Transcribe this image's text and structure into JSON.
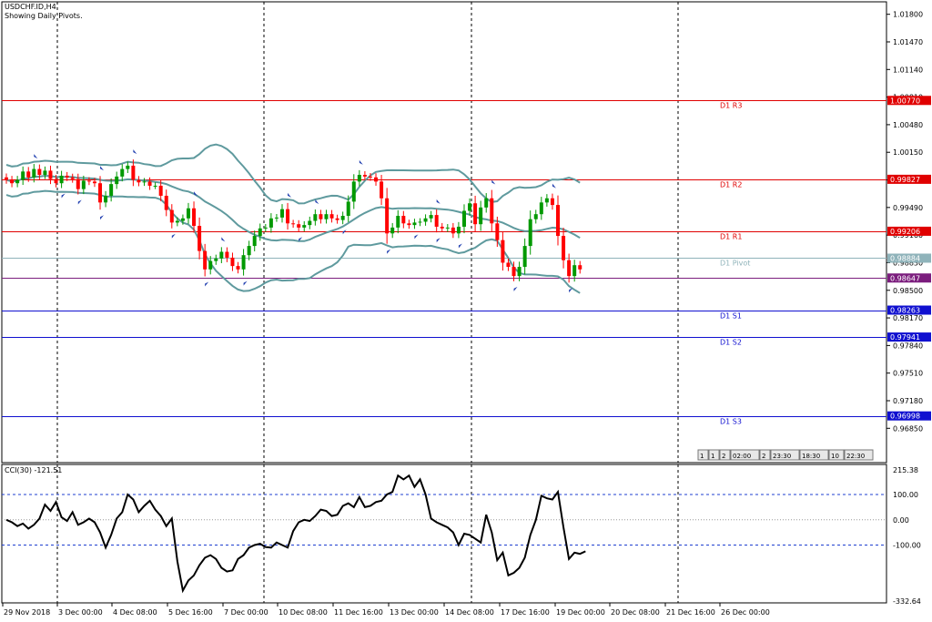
{
  "chart_header": {
    "symbol": "USDCHF.ID,H4",
    "note": "Showing Daily Pivots."
  },
  "cci_label": "CCI(30) -121.51",
  "price_ticks": [
    "1.01800",
    "1.01470",
    "1.01140",
    "1.00810",
    "1.00480",
    "1.00150",
    "0.99820",
    "0.99490",
    "0.99160",
    "0.98830",
    "0.98500",
    "0.98170",
    "0.97840",
    "0.97510",
    "0.97180",
    "0.96850"
  ],
  "cci_ticks": [
    "215.38",
    "100.00",
    "0.00",
    "-100.00",
    "-332.64"
  ],
  "time_labels": [
    "29 Nov 2018",
    "3 Dec 00:00",
    "4 Dec 08:00",
    "5 Dec 16:00",
    "7 Dec 00:00",
    "10 Dec 08:00",
    "11 Dec 16:00",
    "13 Dec 00:00",
    "14 Dec 08:00",
    "17 Dec 16:00",
    "19 Dec 00:00",
    "20 Dec 08:00",
    "21 Dec 16:00",
    "26 Dec 00:00"
  ],
  "time_toolbar": [
    "1",
    "1",
    "2",
    "02:00",
    "2",
    "23:30",
    "18:30",
    "10",
    "22:30"
  ],
  "pivot_lines": [
    {
      "label": "D1 R3",
      "value": "1.00770",
      "color": "#e00000",
      "level": 1.0077
    },
    {
      "label": "D1 R2",
      "value": "0.99827",
      "color": "#e00000",
      "level": 0.99827
    },
    {
      "label": "D1 R1",
      "value": "0.99206",
      "color": "#e00000",
      "level": 0.99206
    },
    {
      "label": "D1 Pivot",
      "value": "0.98884",
      "color": "#8fb3ba",
      "level": 0.98884
    },
    {
      "label": "",
      "value": "0.98647",
      "color": "#7b1d7d",
      "level": 0.98647
    },
    {
      "label": "D1 S1",
      "value": "0.98263",
      "color": "#1010d0",
      "level": 0.98263
    },
    {
      "label": "D1 S2",
      "value": "0.97941",
      "color": "#1010d0",
      "level": 0.97941
    },
    {
      "label": "D1 S3",
      "value": "0.96998",
      "color": "#1010d0",
      "level": 0.96998
    }
  ],
  "colors": {
    "bull": "#009900",
    "bear": "#ff0000",
    "bands": "#5f9a9e",
    "cci": "#000000",
    "levels": "#1f3fd0",
    "fractal": "#2240b0"
  },
  "chart_data": [
    {
      "type": "candlestick",
      "title": "USDCHF.ID,H4",
      "ylim": [
        0.9655,
        1.0196
      ],
      "y_ticks": [
        1.018,
        1.0147,
        1.0114,
        1.0081,
        1.0048,
        1.0015,
        0.9982,
        0.9949,
        0.9916,
        0.9883,
        0.985,
        0.9817,
        0.9784,
        0.9751,
        0.9718,
        0.9685
      ],
      "x_labels": [
        "29 Nov 2018",
        "3 Dec 00:00",
        "4 Dec 08:00",
        "5 Dec 16:00",
        "7 Dec 00:00",
        "10 Dec 08:00",
        "11 Dec 16:00",
        "13 Dec 00:00",
        "14 Dec 08:00",
        "17 Dec 16:00",
        "19 Dec 00:00",
        "20 Dec 08:00",
        "21 Dec 16:00",
        "26 Dec 00:00"
      ],
      "close": [
        0.9982,
        0.9978,
        0.9982,
        0.9992,
        0.9985,
        0.9995,
        0.9988,
        0.9993,
        0.9983,
        0.9978,
        0.9987,
        0.9985,
        0.9983,
        0.9971,
        0.9981,
        0.998,
        0.9978,
        0.9955,
        0.9963,
        0.9977,
        0.9986,
        0.9995,
        0.9999,
        0.9982,
        0.9979,
        0.998,
        0.9975,
        0.9975,
        0.9963,
        0.9946,
        0.9931,
        0.9933,
        0.9936,
        0.9948,
        0.9927,
        0.9897,
        0.9875,
        0.9885,
        0.9888,
        0.9896,
        0.9889,
        0.9879,
        0.9875,
        0.9892,
        0.9903,
        0.9915,
        0.9924,
        0.9925,
        0.9936,
        0.9937,
        0.9947,
        0.993,
        0.9929,
        0.9925,
        0.9928,
        0.9933,
        0.9941,
        0.9935,
        0.9941,
        0.9936,
        0.9934,
        0.9939,
        0.9956,
        0.998,
        0.9988,
        0.9986,
        0.9985,
        0.998,
        0.996,
        0.9918,
        0.9925,
        0.9939,
        0.993,
        0.9928,
        0.9931,
        0.9932,
        0.9936,
        0.994,
        0.9926,
        0.9924,
        0.9925,
        0.9918,
        0.9926,
        0.9945,
        0.9954,
        0.9929,
        0.9949,
        0.996,
        0.993,
        0.991,
        0.9883,
        0.9878,
        0.9867,
        0.9878,
        0.9903,
        0.9935,
        0.9941,
        0.9955,
        0.996,
        0.9952,
        0.9915,
        0.9886,
        0.9867,
        0.988,
        0.9875
      ],
      "series": [
        {
          "name": "D1 R3",
          "value": 1.0077
        },
        {
          "name": "D1 R2",
          "value": 0.99827
        },
        {
          "name": "D1 R1",
          "value": 0.99206
        },
        {
          "name": "D1 Pivot",
          "value": 0.98884
        },
        {
          "name": "D1 S1",
          "value": 0.98263
        },
        {
          "name": "D1 S2",
          "value": 0.97941
        },
        {
          "name": "D1 S3",
          "value": 0.96998
        }
      ]
    },
    {
      "type": "line",
      "title": "CCI(30) -121.51",
      "ylim": [
        -332.64,
        215.38
      ],
      "y_ticks": [
        215.38,
        100,
        0,
        -100,
        -332.64
      ],
      "levels": [
        100,
        -100
      ],
      "values": [
        0,
        -10,
        -25,
        -15,
        -35,
        -20,
        5,
        60,
        35,
        70,
        10,
        -5,
        30,
        -20,
        -10,
        5,
        -10,
        -50,
        -110,
        -60,
        5,
        30,
        100,
        80,
        30,
        55,
        75,
        40,
        15,
        -25,
        5,
        -165,
        -280,
        -240,
        -220,
        -180,
        -150,
        -140,
        -155,
        -190,
        -205,
        -200,
        -155,
        -140,
        -110,
        -100,
        -95,
        -108,
        -110,
        -90,
        -100,
        -110,
        -45,
        -10,
        0,
        -5,
        15,
        40,
        35,
        15,
        20,
        55,
        65,
        50,
        90,
        50,
        55,
        70,
        75,
        100,
        110,
        175,
        160,
        175,
        130,
        160,
        100,
        5,
        -10,
        -20,
        -30,
        -50,
        -100,
        -55,
        -60,
        -75,
        -90,
        20,
        -50,
        -160,
        -130,
        -220,
        -210,
        -190,
        -150,
        -60,
        0,
        95,
        85,
        80,
        110,
        -30,
        -155,
        -130,
        -135,
        -125
      ]
    }
  ]
}
